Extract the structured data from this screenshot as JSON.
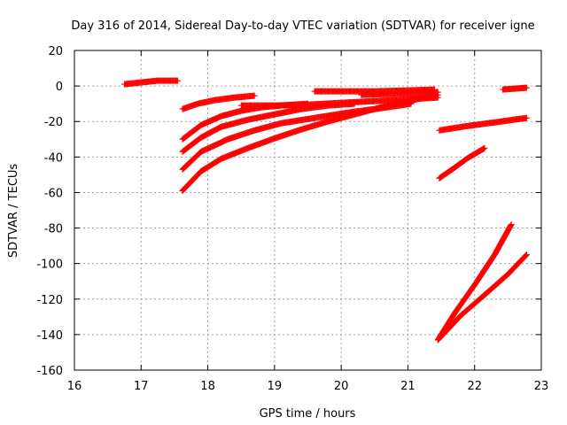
{
  "chart_data": {
    "type": "scatter",
    "title": "Day 316 of 2014, Sidereal Day-to-day VTEC variation (SDTVAR) for receiver igne",
    "xlabel": "GPS time / hours",
    "ylabel": "SDTVAR / TECUs",
    "xlim": [
      16,
      23
    ],
    "ylim": [
      -160,
      20
    ],
    "xticks": [
      16,
      17,
      18,
      19,
      20,
      21,
      22,
      23
    ],
    "yticks": [
      20,
      0,
      -20,
      -40,
      -60,
      -80,
      -100,
      -120,
      -140,
      -160
    ],
    "grid": true,
    "marker": "+",
    "color": "#ff0000",
    "series": [
      {
        "x": [
          16.75,
          17.0,
          17.25,
          17.55
        ],
        "y": [
          1,
          2,
          3,
          3
        ]
      },
      {
        "x": [
          17.62,
          17.85,
          18.1,
          18.4,
          18.7
        ],
        "y": [
          -13,
          -10,
          -8,
          -6.5,
          -5.5
        ]
      },
      {
        "x": [
          17.62,
          17.9,
          18.2,
          18.5,
          18.8,
          19.1,
          19.5
        ],
        "y": [
          -30,
          -22,
          -17,
          -14,
          -12,
          -11,
          -10
        ]
      },
      {
        "x": [
          17.62,
          17.9,
          18.2,
          18.6,
          19.0,
          19.4,
          19.8,
          20.2
        ],
        "y": [
          -37,
          -29,
          -23,
          -19,
          -16,
          -13,
          -11,
          -10
        ]
      },
      {
        "x": [
          17.62,
          17.9,
          18.3,
          18.7,
          19.1,
          19.6,
          20.1,
          20.6,
          21.05
        ],
        "y": [
          -47,
          -37,
          -30,
          -25,
          -21,
          -18,
          -15,
          -12.5,
          -10
        ]
      },
      {
        "x": [
          17.62,
          17.9,
          18.2,
          18.6,
          19.0,
          19.4,
          19.8,
          20.2,
          20.6,
          21.0,
          21.45
        ],
        "y": [
          -59,
          -48,
          -41,
          -35,
          -29.5,
          -24.5,
          -20,
          -16,
          -12,
          -8.5,
          -5
        ]
      },
      {
        "x": [
          18.5,
          19.0,
          19.5,
          20.0,
          20.5,
          21.0,
          21.45
        ],
        "y": [
          -11,
          -11,
          -10.5,
          -9.5,
          -8.5,
          -7.5,
          -6.5
        ]
      },
      {
        "x": [
          19.6,
          20.0,
          20.5,
          21.0,
          21.4
        ],
        "y": [
          -3,
          -3,
          -3,
          -2.5,
          -2
        ]
      },
      {
        "x": [
          20.3,
          20.7,
          21.1,
          21.45
        ],
        "y": [
          -5,
          -4.5,
          -4,
          -3.5
        ]
      },
      {
        "x": [
          21.47,
          21.9,
          22.3,
          22.78
        ],
        "y": [
          -25,
          -22.5,
          -20.5,
          -18
        ]
      },
      {
        "x": [
          21.47,
          21.7,
          21.9,
          22.15
        ],
        "y": [
          -52,
          -46,
          -40.5,
          -35
        ]
      },
      {
        "x": [
          22.42,
          22.6,
          22.78
        ],
        "y": [
          -2,
          -1.5,
          -1
        ]
      },
      {
        "x": [
          21.45,
          21.7,
          22.0,
          22.3,
          22.55
        ],
        "y": [
          -143,
          -128,
          -112,
          -95,
          -78
        ]
      },
      {
        "x": [
          21.45,
          21.8,
          22.2,
          22.5,
          22.78
        ],
        "y": [
          -143,
          -129,
          -116,
          -106,
          -95
        ]
      }
    ]
  }
}
